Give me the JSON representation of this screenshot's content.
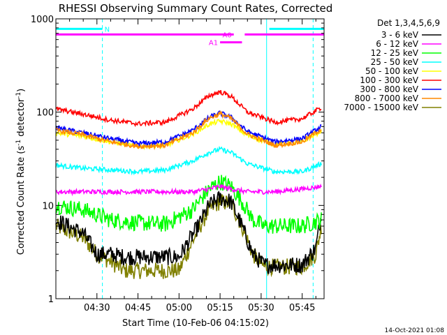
{
  "chart_data": {
    "type": "line",
    "title": "RHESSI Observing Summary Count Rates, Corrected",
    "xlabel": "Start Time (10-Feb-06 04:15:02)",
    "ylabel_main": "Corrected Count Rate (s",
    "ylabel_sup1": "-1",
    "ylabel_mid": " detector",
    "ylabel_sup2": "-1",
    "ylabel_end": ")",
    "yscale": "log",
    "ylim": [
      1,
      1000
    ],
    "y_ticks": [
      {
        "value": 1,
        "label": "1"
      },
      {
        "value": 10,
        "label": "10"
      },
      {
        "value": 100,
        "label": "100"
      },
      {
        "value": 1000,
        "label": "1000"
      }
    ],
    "xlim_minutes": [
      0,
      98
    ],
    "x_ticks": [
      {
        "minute": 15,
        "label": "04:30"
      },
      {
        "minute": 30,
        "label": "04:45"
      },
      {
        "minute": 45,
        "label": "05:00"
      },
      {
        "minute": 60,
        "label": "05:15"
      },
      {
        "minute": 75,
        "label": "05:30"
      },
      {
        "minute": 90,
        "label": "05:45"
      }
    ],
    "legend_title": "Det 1,3,4,5,6,9",
    "legend_position": "right",
    "series": [
      {
        "name": "3 - 6 keV",
        "color": "#000000",
        "x": [
          0,
          10,
          15,
          20,
          25,
          35,
          45,
          52,
          56,
          60,
          64,
          68,
          72,
          76,
          80,
          90,
          95,
          97
        ],
        "values": [
          7,
          5,
          3,
          3,
          2.8,
          2.8,
          2.8,
          6,
          10,
          12,
          11,
          6,
          3,
          2.3,
          2.3,
          2.3,
          3.5,
          8
        ]
      },
      {
        "name": "6 - 12 keV",
        "color": "#ff00ff",
        "x": [
          0,
          10,
          20,
          30,
          40,
          50,
          56,
          60,
          64,
          70,
          80,
          90,
          97
        ],
        "values": [
          14,
          14,
          14,
          14,
          14,
          14,
          15,
          16,
          15,
          14,
          14,
          15,
          16
        ]
      },
      {
        "name": "12 - 25 keV",
        "color": "#00ff00",
        "x": [
          0,
          10,
          20,
          30,
          40,
          50,
          56,
          60,
          64,
          68,
          72,
          76,
          80,
          90,
          97
        ],
        "values": [
          10,
          9,
          7,
          6.5,
          6.3,
          9,
          15,
          18,
          16,
          11,
          7,
          6,
          6,
          6,
          7
        ]
      },
      {
        "name": "25 - 50 keV",
        "color": "#00ffff",
        "x": [
          0,
          10,
          20,
          30,
          40,
          50,
          56,
          60,
          64,
          70,
          80,
          90,
          97
        ],
        "values": [
          27,
          25,
          24,
          23,
          24,
          30,
          37,
          40,
          37,
          28,
          23,
          23,
          28
        ]
      },
      {
        "name": "50 - 100 keV",
        "color": "#ffff00",
        "x": [
          0,
          10,
          20,
          30,
          40,
          50,
          56,
          60,
          64,
          70,
          80,
          90,
          97
        ],
        "values": [
          60,
          55,
          48,
          43,
          44,
          58,
          74,
          80,
          75,
          56,
          45,
          48,
          63
        ]
      },
      {
        "name": "100 - 300 keV",
        "color": "#ff0000",
        "x": [
          0,
          10,
          20,
          30,
          40,
          50,
          56,
          60,
          64,
          70,
          80,
          90,
          97
        ],
        "values": [
          108,
          95,
          82,
          75,
          78,
          108,
          150,
          165,
          148,
          100,
          78,
          85,
          112
        ]
      },
      {
        "name": "300 - 800 keV",
        "color": "#0000ff",
        "x": [
          0,
          10,
          20,
          30,
          40,
          50,
          56,
          60,
          64,
          70,
          80,
          90,
          97
        ],
        "values": [
          68,
          60,
          52,
          46,
          48,
          64,
          88,
          98,
          88,
          62,
          48,
          52,
          70
        ]
      },
      {
        "name": "800 - 7000 keV",
        "color": "#ff8800",
        "x": [
          0,
          10,
          20,
          30,
          40,
          50,
          56,
          60,
          64,
          70,
          80,
          90,
          97
        ],
        "values": [
          64,
          57,
          48,
          43,
          44,
          60,
          86,
          96,
          86,
          58,
          44,
          48,
          66
        ]
      },
      {
        "name": "7000 - 15000 keV",
        "color": "#808000",
        "x": [
          0,
          10,
          15,
          20,
          25,
          35,
          45,
          52,
          56,
          60,
          64,
          68,
          72,
          76,
          80,
          90,
          95,
          97
        ],
        "values": [
          6,
          4.5,
          3,
          2.5,
          2,
          2,
          2,
          5.5,
          9,
          11,
          10.5,
          6,
          3,
          2.2,
          2.2,
          2.2,
          3,
          6
        ]
      }
    ],
    "annotations": [
      {
        "label": "N",
        "color": "#00ffff",
        "y": 780,
        "segments": [
          [
            0,
            17
          ],
          [
            78,
            98
          ]
        ]
      },
      {
        "label": "A0",
        "color": "#ff00ff",
        "y": 680,
        "segments": [
          [
            0,
            65
          ],
          [
            69,
            98
          ]
        ]
      },
      {
        "label": "A1",
        "color": "#ff00ff",
        "y": 560,
        "segments": [
          [
            60,
            68
          ]
        ]
      }
    ],
    "vlines": [
      {
        "minute": 0,
        "style": "solid",
        "color": "#00ffff"
      },
      {
        "minute": 17,
        "style": "dashed",
        "color": "#00ffff"
      },
      {
        "minute": 77,
        "style": "solid",
        "color": "#00ffff"
      },
      {
        "minute": 94,
        "style": "dashed",
        "color": "#00ffff"
      }
    ]
  },
  "footer": {
    "timestamp": "14-Oct-2021 01:08"
  }
}
